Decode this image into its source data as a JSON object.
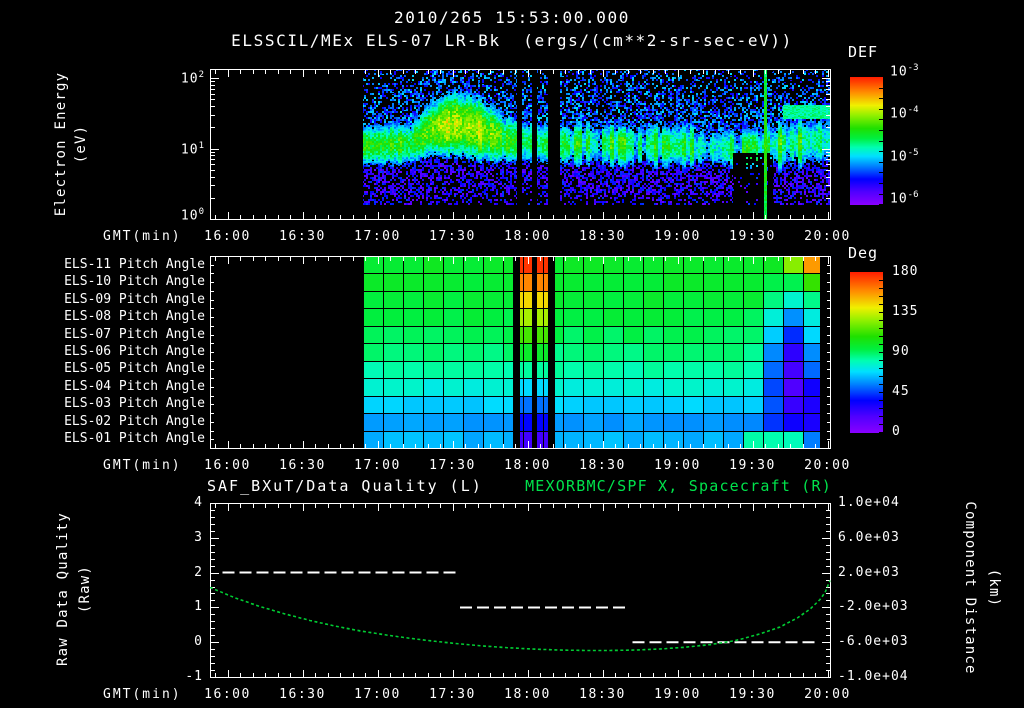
{
  "header": {
    "line1": "2010/265 15:53:00.000",
    "line2": "ELSSCIL/MEx ELS-07 LR-Bk  (ergs/(cm**2-sr-sec-eV))"
  },
  "time_axis": {
    "label": "GMT(min)",
    "start_time": "15:53",
    "end_time": "20:01",
    "tick_labels": [
      "16:00",
      "16:30",
      "17:00",
      "17:30",
      "18:00",
      "18:30",
      "19:00",
      "19:30",
      "20:00"
    ],
    "tick_minutes_from_start": [
      7,
      37,
      67,
      97,
      127,
      157,
      187,
      217,
      247
    ],
    "minutes_span": 248
  },
  "colors": {
    "background": "#000000",
    "text": "#ffffff",
    "title_green": "#00e34c",
    "curve_green": "#00cc33",
    "rainbow_stops": [
      [
        0,
        "#8800ff"
      ],
      [
        0.1,
        "#5000ff"
      ],
      [
        0.2,
        "#0000ff"
      ],
      [
        0.3,
        "#0080ff"
      ],
      [
        0.38,
        "#00e0ff"
      ],
      [
        0.45,
        "#00ffb0"
      ],
      [
        0.52,
        "#00f040"
      ],
      [
        0.6,
        "#20e000"
      ],
      [
        0.7,
        "#90f000"
      ],
      [
        0.78,
        "#f0f000"
      ],
      [
        0.88,
        "#ff9000"
      ],
      [
        1,
        "#ff2000"
      ]
    ]
  },
  "energy_panel": {
    "ylabel_line1": "Electron Energy",
    "ylabel_line2": "(eV)",
    "yticks": [
      {
        "b": "10",
        "e": "2",
        "logv": 2
      },
      {
        "b": "10",
        "e": "1",
        "logv": 1
      },
      {
        "b": "10",
        "e": "0",
        "logv": 0
      }
    ],
    "colorbar": {
      "title": "DEF",
      "ticks": [
        {
          "b": "10",
          "e": "-3"
        },
        {
          "b": "10",
          "e": "-4"
        },
        {
          "b": "10",
          "e": "-5"
        },
        {
          "b": "10",
          "e": "-6"
        }
      ]
    }
  },
  "pitch_panel": {
    "rows": [
      "ELS-11 Pitch Angle",
      "ELS-10 Pitch Angle",
      "ELS-09 Pitch Angle",
      "ELS-08 Pitch Angle",
      "ELS-07 Pitch Angle",
      "ELS-06 Pitch Angle",
      "ELS-05 Pitch Angle",
      "ELS-04 Pitch Angle",
      "ELS-03 Pitch Angle",
      "ELS-02 Pitch Angle",
      "ELS-01 Pitch Angle"
    ],
    "colorbar": {
      "title": "Deg",
      "ticks": [
        "180",
        "135",
        "90",
        "45",
        "0"
      ],
      "tick_values": [
        180,
        135,
        90,
        45,
        0
      ]
    }
  },
  "bottom_panel": {
    "title_left": "SAF_BXuT/Data Quality (L)",
    "title_right": "MEXORBMC/SPF X, Spacecraft (R)",
    "ylabel_left_line1": "Raw Data Quality",
    "ylabel_left_line2": "(Raw)",
    "ylabel_right_line1": "Component Distance",
    "ylabel_right_line2": "(km)",
    "left_ticks": [
      "4",
      "3",
      "2",
      "1",
      "0",
      "-1"
    ],
    "left_tick_values": [
      4,
      3,
      2,
      1,
      0,
      -1
    ],
    "right_ticks": [
      "1.0e+04",
      "6.0e+03",
      "2.0e+03",
      "-2.0e+03",
      "-6.0e+03",
      "-1.0e+04"
    ],
    "right_tick_values": [
      10000,
      6000,
      2000,
      -2000,
      -6000,
      -10000
    ]
  },
  "chart_data": [
    {
      "type": "heatmap",
      "name": "electron-energy-spectrogram",
      "title": "ELSSCIL/MEx ELS-07 LR-Bk",
      "units": "ergs/(cm**2-sr-sec-eV)",
      "x": {
        "label": "GMT(min)",
        "start": "15:53",
        "end": "20:01"
      },
      "y": {
        "label": "Electron Energy (eV)",
        "scale": "log",
        "min": 1,
        "max": 200
      },
      "color_axis": {
        "label": "DEF",
        "scale": "log",
        "min": 1e-06,
        "max": 0.001
      },
      "data_start_min": 61,
      "data_gaps_min": [
        [
          122.8,
          124.8
        ],
        [
          128.8,
          130.8
        ],
        [
          135.2,
          140.0
        ]
      ],
      "band_keyframes": [
        [
          61,
          1.05,
          -4.35,
          0.2
        ],
        [
          80,
          1.07,
          -4.3,
          0.22
        ],
        [
          88,
          1.28,
          -4.05,
          0.26
        ],
        [
          97,
          1.36,
          -3.85,
          0.3
        ],
        [
          104,
          1.32,
          -3.88,
          0.3
        ],
        [
          110,
          1.24,
          -3.98,
          0.28
        ],
        [
          118,
          1.14,
          -4.25,
          0.24
        ],
        [
          126,
          1.1,
          -4.35,
          0.23
        ],
        [
          134,
          1.08,
          -4.38,
          0.22
        ],
        [
          142,
          1.06,
          -4.52,
          0.22
        ],
        [
          152,
          1.08,
          -4.48,
          0.24
        ],
        [
          163,
          1.05,
          -4.58,
          0.22
        ],
        [
          175,
          1.06,
          -4.52,
          0.23
        ],
        [
          188,
          1.04,
          -4.55,
          0.24
        ],
        [
          200,
          1.02,
          -4.62,
          0.22
        ],
        [
          209,
          1.0,
          -4.68,
          0.21
        ],
        [
          216,
          1.0,
          -4.6,
          0.22
        ],
        [
          224,
          1.04,
          -4.45,
          0.24
        ],
        [
          232,
          1.08,
          -4.32,
          0.26
        ],
        [
          241,
          1.1,
          -4.36,
          0.26
        ],
        [
          248,
          1.12,
          -4.3,
          0.26
        ]
      ],
      "bright_streak_min": 222,
      "suppressed_bottom_min": [
        209,
        225
      ],
      "top_right_streak": {
        "t0": 229,
        "log_e_range": [
          1.43,
          1.62
        ]
      },
      "description": "cyan-green band near 10-20 eV; yellow enhancement 17:20-17:45 near 20-30 eV; patchy cyan after 18:10; blue/purple speckle background; black data gaps near 18:00-18:10; bright green full-height streak near 19:35"
    },
    {
      "type": "heatmap",
      "name": "pitch-angle-panel",
      "rows": [
        "ELS-11",
        "ELS-10",
        "ELS-09",
        "ELS-08",
        "ELS-07",
        "ELS-06",
        "ELS-05",
        "ELS-04",
        "ELS-03",
        "ELS-02",
        "ELS-01"
      ],
      "color_axis": {
        "label": "Deg",
        "min": 0,
        "max": 180
      },
      "data_start_min": 61,
      "data_end_min": 244,
      "cell_minutes": 8,
      "row_base_deg": [
        98,
        97,
        96,
        94,
        91,
        87,
        82,
        75,
        66,
        58,
        62
      ],
      "event_columns": {
        "colored_min": [
          [
            124,
            128.8
          ],
          [
            130.8,
            135.2
          ]
        ],
        "black_min": [
          [
            121.2,
            124
          ],
          [
            128.8,
            130.8
          ],
          [
            135.2,
            138
          ]
        ],
        "top_deg": 176,
        "per_row_drop_deg": 15.5
      },
      "right_depression": {
        "center_min": 233,
        "sigma_min": 9.5,
        "row_depth_deg": [
          0,
          6,
          22,
          38,
          50,
          60,
          62,
          55,
          42,
          25,
          0
        ],
        "far_edge_extra_rows": [
          7,
          8,
          9
        ],
        "far_edge_extra_deg": 16,
        "far_edge_t0": 238
      },
      "top_right_rise": {
        "row0_from_min": 225,
        "row0_deg_per_min": 3.6,
        "row1_from_min": 234,
        "row1_deg_per_min": 2.4
      },
      "bottom_row_green_min": [
        214,
        234
      ],
      "description": "uniform ~90-100 deg green grid, cyan toward bottom rows; red-to-blue vertical event stripes 17:54-18:11; blue depression rows 3-9 after 19:20; orange top-right corner"
    },
    {
      "type": "line",
      "name": "quality-and-spacecraft-x",
      "title_left": "SAF_BXuT/Data Quality (L)",
      "title_right": "MEXORBMC/SPF X, Spacecraft (R)",
      "y_left": {
        "label": "Raw Data Quality (Raw)",
        "min": -1,
        "max": 4
      },
      "y_right": {
        "label": "Component Distance (km)",
        "min": -10000,
        "max": 10000
      },
      "quality_segments": [
        {
          "level": 2,
          "t0": 5,
          "t1": 100
        },
        {
          "level": 1,
          "t0": 100,
          "t1": 168
        },
        {
          "level": 0,
          "t0": 169,
          "t1": 243
        }
      ],
      "spacecraft_x_km": [
        [
          0,
          300
        ],
        [
          10,
          -900
        ],
        [
          20,
          -1900
        ],
        [
          30,
          -2750
        ],
        [
          40,
          -3500
        ],
        [
          50,
          -4150
        ],
        [
          60,
          -4700
        ],
        [
          70,
          -5150
        ],
        [
          80,
          -5550
        ],
        [
          90,
          -5900
        ],
        [
          100,
          -6200
        ],
        [
          110,
          -6450
        ],
        [
          120,
          -6650
        ],
        [
          130,
          -6800
        ],
        [
          140,
          -6900
        ],
        [
          150,
          -6950
        ],
        [
          160,
          -6950
        ],
        [
          170,
          -6900
        ],
        [
          180,
          -6780
        ],
        [
          190,
          -6580
        ],
        [
          200,
          -6280
        ],
        [
          210,
          -5830
        ],
        [
          220,
          -5050
        ],
        [
          228,
          -4250
        ],
        [
          235,
          -3200
        ],
        [
          240,
          -2200
        ],
        [
          244,
          -1100
        ],
        [
          246,
          -300
        ],
        [
          248,
          1100
        ]
      ]
    }
  ]
}
